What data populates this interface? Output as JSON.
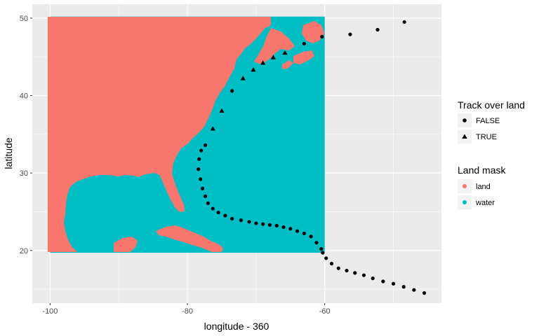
{
  "chart_data": {
    "type": "scatter",
    "title": "",
    "xlabel": "longitude - 360",
    "ylabel": "latitude",
    "xlim": [
      -102.6,
      -43
    ],
    "ylim": [
      13.2,
      51.8
    ],
    "x_ticks": [
      -100,
      -80,
      -60
    ],
    "x_tick_labels": [
      "-100",
      "-80",
      "-60"
    ],
    "y_ticks": [
      20,
      30,
      40,
      50
    ],
    "y_tick_labels": [
      "20",
      "30",
      "40",
      "50"
    ],
    "grid": true,
    "legend_position": "right",
    "colors": {
      "land": "#F8766D",
      "water": "#00BFC4",
      "panel": "#EBEBEB",
      "grid": "#FFFFFF",
      "points": "#000000"
    },
    "land_mask": {
      "title": "Land mask",
      "entries": [
        "land",
        "water"
      ],
      "extent": {
        "x": [
          -100,
          -60
        ],
        "y": [
          19.7,
          50.2
        ]
      }
    },
    "track_over_land": {
      "title": "Track over land",
      "entries": [
        "FALSE",
        "TRUE"
      ]
    },
    "series": [
      {
        "name": "FALSE",
        "shape": "circle",
        "points": [
          [
            -45.5,
            14.5
          ],
          [
            -47,
            14.9
          ],
          [
            -48.5,
            15.3
          ],
          [
            -50,
            15.7
          ],
          [
            -51.5,
            16.0
          ],
          [
            -53,
            16.4
          ],
          [
            -54.3,
            16.8
          ],
          [
            -55.6,
            17.1
          ],
          [
            -56.8,
            17.4
          ],
          [
            -58,
            17.7
          ],
          [
            -59,
            18.3
          ],
          [
            -59.8,
            19.0
          ],
          [
            -60.3,
            19.7
          ],
          [
            -60.5,
            20.2
          ],
          [
            -61.2,
            21.0
          ],
          [
            -62,
            21.8
          ],
          [
            -63,
            22.2
          ],
          [
            -64,
            22.5
          ],
          [
            -65,
            22.8
          ],
          [
            -66,
            23.0
          ],
          [
            -67,
            23.2
          ],
          [
            -68,
            23.3
          ],
          [
            -69,
            23.4
          ],
          [
            -70,
            23.5
          ],
          [
            -71,
            23.7
          ],
          [
            -72.2,
            23.9
          ],
          [
            -73.5,
            24.1
          ],
          [
            -74.5,
            24.5
          ],
          [
            -75.5,
            24.9
          ],
          [
            -76.3,
            25.4
          ],
          [
            -77,
            26.1
          ],
          [
            -77.4,
            27.0
          ],
          [
            -77.8,
            28.0
          ],
          [
            -78.1,
            29.2
          ],
          [
            -78.4,
            30.5
          ],
          [
            -78.3,
            31.8
          ],
          [
            -78,
            32.9
          ],
          [
            -77.4,
            33.6
          ],
          [
            -73.5,
            40.6
          ],
          [
            -63,
            46.7
          ],
          [
            -60.4,
            47.6
          ],
          [
            -56.3,
            47.9
          ],
          [
            -52.3,
            48.5
          ],
          [
            -48.4,
            49.5
          ]
        ]
      },
      {
        "name": "TRUE",
        "shape": "triangle",
        "points": [
          [
            -76.3,
            35.7
          ],
          [
            -75,
            38.0
          ],
          [
            -71.9,
            42.2
          ],
          [
            -70.4,
            43.3
          ],
          [
            -69,
            44.2
          ],
          [
            -67.5,
            44.9
          ],
          [
            -65.8,
            45.5
          ]
        ]
      }
    ]
  }
}
